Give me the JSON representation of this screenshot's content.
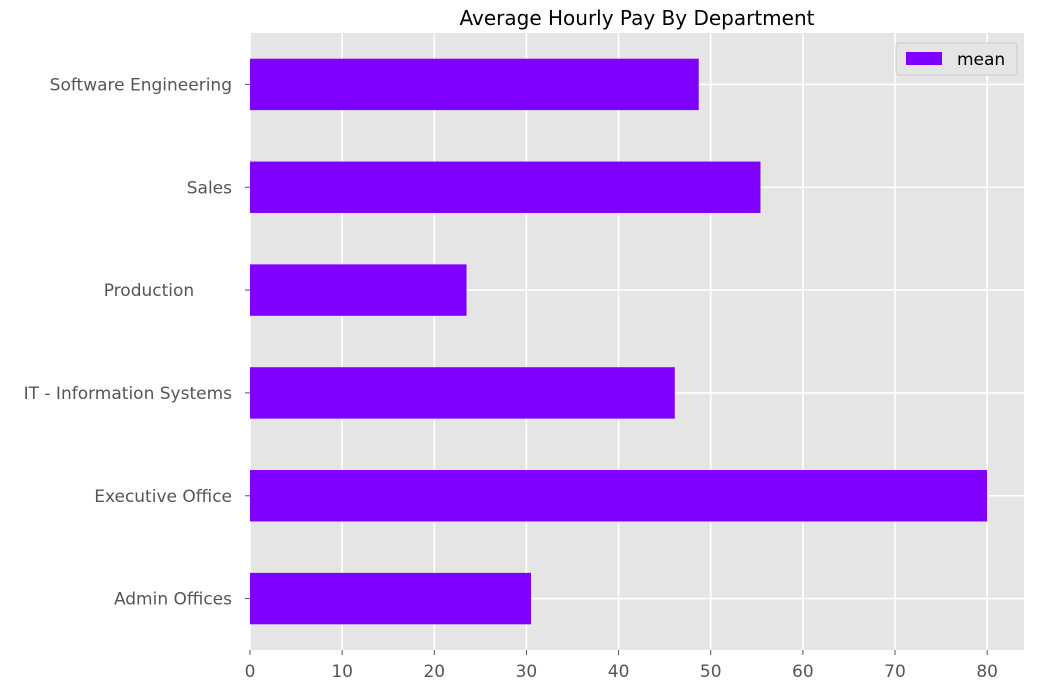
{
  "chart_data": {
    "type": "bar",
    "orientation": "horizontal",
    "title": "Average Hourly Pay By Department",
    "xlabel": "",
    "ylabel": "",
    "categories": [
      "Admin Offices",
      "Executive Office",
      "IT - Information Systems",
      "Production       ",
      "Sales",
      "Software Engineering"
    ],
    "series": [
      {
        "name": "mean",
        "values": [
          30.5,
          80.0,
          46.1,
          23.5,
          55.4,
          48.7
        ],
        "color": "#7f00ff"
      }
    ],
    "xlim": [
      0,
      84
    ],
    "x_ticks": [
      0,
      10,
      20,
      30,
      40,
      50,
      60,
      70,
      80
    ],
    "grid": true,
    "legend_position": "top-right",
    "style": {
      "background": "#e5e5e5",
      "grid_color": "#ffffff"
    }
  }
}
